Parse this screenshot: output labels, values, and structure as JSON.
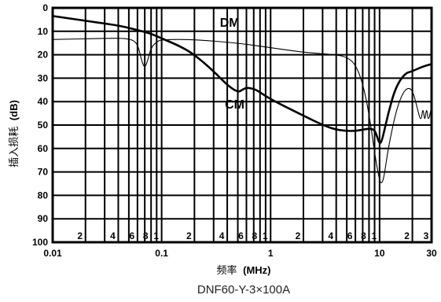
{
  "chart_data": {
    "type": "line",
    "title": "",
    "caption": "DNF60-Y-3×100A",
    "xlabel_text": "频率",
    "xlabel_unit": "(MHz)",
    "ylabel_text": "插入损耗",
    "ylabel_unit": "(dB)",
    "x_scale": "log",
    "xlim": [
      0.01,
      30
    ],
    "ylim": [
      0,
      100
    ],
    "y_inverted": true,
    "grid": true,
    "x_major_ticks": [
      {
        "value": 0.01,
        "label": "0.01"
      },
      {
        "value": 0.1,
        "label": "0.1"
      },
      {
        "value": 1,
        "label": "1"
      },
      {
        "value": 10,
        "label": "10"
      },
      {
        "value": 30,
        "label": "30"
      }
    ],
    "x_minor_labels": [
      {
        "value": 0.02,
        "label": "2"
      },
      {
        "value": 0.04,
        "label": "4"
      },
      {
        "value": 0.06,
        "label": "6"
      },
      {
        "value": 0.08,
        "label": "8"
      },
      {
        "value": 0.1,
        "label": "1"
      },
      {
        "value": 0.2,
        "label": "2"
      },
      {
        "value": 0.4,
        "label": "4"
      },
      {
        "value": 0.6,
        "label": "6"
      },
      {
        "value": 0.8,
        "label": "8"
      },
      {
        "value": 1,
        "label": "1"
      },
      {
        "value": 2,
        "label": "2"
      },
      {
        "value": 4,
        "label": "4"
      },
      {
        "value": 6,
        "label": "6"
      },
      {
        "value": 8,
        "label": "8"
      },
      {
        "value": 10,
        "label": "1"
      },
      {
        "value": 20,
        "label": "2"
      },
      {
        "value": 30,
        "label": "3"
      }
    ],
    "y_ticks": [
      0,
      10,
      20,
      30,
      40,
      50,
      60,
      70,
      80,
      90,
      100
    ],
    "series": [
      {
        "name": "CM",
        "style": "thick",
        "color": "#000000",
        "label_at": {
          "x": 0.5,
          "y": 41
        },
        "points": [
          {
            "x": 0.01,
            "y": 3.5
          },
          {
            "x": 0.02,
            "y": 5.5
          },
          {
            "x": 0.04,
            "y": 7.5
          },
          {
            "x": 0.06,
            "y": 9.5
          },
          {
            "x": 0.08,
            "y": 11
          },
          {
            "x": 0.1,
            "y": 13
          },
          {
            "x": 0.15,
            "y": 16.5
          },
          {
            "x": 0.2,
            "y": 20
          },
          {
            "x": 0.3,
            "y": 27
          },
          {
            "x": 0.4,
            "y": 33
          },
          {
            "x": 0.5,
            "y": 36
          },
          {
            "x": 0.55,
            "y": 35
          },
          {
            "x": 0.6,
            "y": 34
          },
          {
            "x": 0.7,
            "y": 34.5
          },
          {
            "x": 0.8,
            "y": 36
          },
          {
            "x": 1,
            "y": 39
          },
          {
            "x": 2,
            "y": 46
          },
          {
            "x": 3,
            "y": 50
          },
          {
            "x": 4,
            "y": 52
          },
          {
            "x": 5,
            "y": 52.5
          },
          {
            "x": 6,
            "y": 52.5
          },
          {
            "x": 7,
            "y": 52
          },
          {
            "x": 8,
            "y": 51.5
          },
          {
            "x": 9,
            "y": 52
          },
          {
            "x": 9.5,
            "y": 55
          },
          {
            "x": 10,
            "y": 58
          },
          {
            "x": 10.5,
            "y": 57
          },
          {
            "x": 12,
            "y": 45
          },
          {
            "x": 14,
            "y": 34
          },
          {
            "x": 17,
            "y": 28
          },
          {
            "x": 20,
            "y": 27
          },
          {
            "x": 25,
            "y": 25
          },
          {
            "x": 30,
            "y": 24
          }
        ]
      },
      {
        "name": "DM",
        "style": "thin",
        "color": "#000000",
        "label_at": {
          "x": 0.45,
          "y": 6
        },
        "points": [
          {
            "x": 0.01,
            "y": 13.5
          },
          {
            "x": 0.03,
            "y": 13
          },
          {
            "x": 0.05,
            "y": 13
          },
          {
            "x": 0.06,
            "y": 15
          },
          {
            "x": 0.065,
            "y": 22
          },
          {
            "x": 0.07,
            "y": 26
          },
          {
            "x": 0.075,
            "y": 22
          },
          {
            "x": 0.08,
            "y": 17
          },
          {
            "x": 0.09,
            "y": 14.5
          },
          {
            "x": 0.1,
            "y": 13.5
          },
          {
            "x": 0.2,
            "y": 13.5
          },
          {
            "x": 0.5,
            "y": 15
          },
          {
            "x": 1,
            "y": 17
          },
          {
            "x": 2,
            "y": 19
          },
          {
            "x": 4,
            "y": 20
          },
          {
            "x": 5,
            "y": 21
          },
          {
            "x": 6,
            "y": 24
          },
          {
            "x": 7,
            "y": 32
          },
          {
            "x": 8,
            "y": 45
          },
          {
            "x": 9,
            "y": 62
          },
          {
            "x": 10,
            "y": 74
          },
          {
            "x": 10.5,
            "y": 75
          },
          {
            "x": 11,
            "y": 72
          },
          {
            "x": 12,
            "y": 60
          },
          {
            "x": 14,
            "y": 45
          },
          {
            "x": 16,
            "y": 37
          },
          {
            "x": 18,
            "y": 34
          },
          {
            "x": 20,
            "y": 35
          },
          {
            "x": 22,
            "y": 42
          },
          {
            "x": 24,
            "y": 49
          },
          {
            "x": 25,
            "y": 42
          },
          {
            "x": 26,
            "y": 49
          },
          {
            "x": 27,
            "y": 42
          },
          {
            "x": 28,
            "y": 49
          },
          {
            "x": 30,
            "y": 42
          }
        ]
      }
    ]
  }
}
